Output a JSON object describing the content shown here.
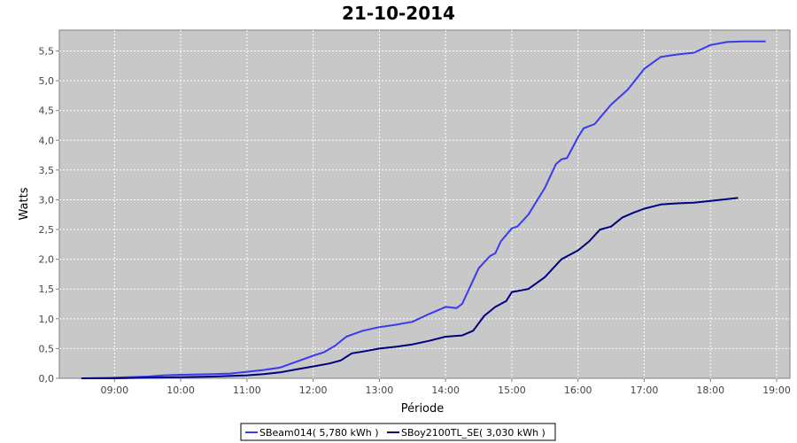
{
  "chart_data": {
    "type": "line",
    "title": "21-10-2014",
    "xlabel": "Période",
    "ylabel": "Watts",
    "x_ticks": [
      "09:00",
      "10:00",
      "11:00",
      "12:00",
      "13:00",
      "14:00",
      "15:00",
      "16:00",
      "17:00",
      "18:00",
      "19:00"
    ],
    "xlim": [
      "08:10",
      "19:12"
    ],
    "y_ticks": [
      "0,0",
      "0,5",
      "1,0",
      "1,5",
      "2,0",
      "2,5",
      "3,0",
      "3,5",
      "4,0",
      "4,5",
      "5,0",
      "5,5"
    ],
    "ylim": [
      0,
      5.85
    ],
    "grid": true,
    "legend_position": "bottom",
    "colors": {
      "plot_background": "#c8c8c8",
      "grid": "#ffffff"
    },
    "series": [
      {
        "name": "SBeam014( 5,780 kWh )",
        "color": "#3a3af0",
        "points": [
          [
            "08:30",
            0.0
          ],
          [
            "09:00",
            0.01
          ],
          [
            "09:30",
            0.03
          ],
          [
            "09:45",
            0.05
          ],
          [
            "10:00",
            0.06
          ],
          [
            "10:30",
            0.07
          ],
          [
            "10:45",
            0.08
          ],
          [
            "11:00",
            0.11
          ],
          [
            "11:15",
            0.14
          ],
          [
            "11:30",
            0.18
          ],
          [
            "11:45",
            0.28
          ],
          [
            "12:00",
            0.38
          ],
          [
            "12:10",
            0.44
          ],
          [
            "12:20",
            0.55
          ],
          [
            "12:30",
            0.7
          ],
          [
            "12:45",
            0.8
          ],
          [
            "13:00",
            0.86
          ],
          [
            "13:15",
            0.9
          ],
          [
            "13:30",
            0.95
          ],
          [
            "13:45",
            1.08
          ],
          [
            "14:00",
            1.2
          ],
          [
            "14:10",
            1.18
          ],
          [
            "14:15",
            1.25
          ],
          [
            "14:20",
            1.45
          ],
          [
            "14:30",
            1.85
          ],
          [
            "14:40",
            2.05
          ],
          [
            "14:45",
            2.1
          ],
          [
            "14:50",
            2.3
          ],
          [
            "15:00",
            2.52
          ],
          [
            "15:05",
            2.55
          ],
          [
            "15:15",
            2.75
          ],
          [
            "15:30",
            3.2
          ],
          [
            "15:40",
            3.6
          ],
          [
            "15:45",
            3.68
          ],
          [
            "15:50",
            3.7
          ],
          [
            "16:00",
            4.05
          ],
          [
            "16:05",
            4.2
          ],
          [
            "16:15",
            4.27
          ],
          [
            "16:30",
            4.6
          ],
          [
            "16:45",
            4.85
          ],
          [
            "17:00",
            5.2
          ],
          [
            "17:15",
            5.4
          ],
          [
            "17:30",
            5.44
          ],
          [
            "17:45",
            5.47
          ],
          [
            "18:00",
            5.6
          ],
          [
            "18:15",
            5.65
          ],
          [
            "18:30",
            5.66
          ],
          [
            "18:50",
            5.66
          ]
        ]
      },
      {
        "name": "SBoy2100TL_SE( 3,030 kWh )",
        "color": "#000080",
        "points": [
          [
            "08:30",
            0.0
          ],
          [
            "09:00",
            0.0
          ],
          [
            "09:30",
            0.01
          ],
          [
            "10:00",
            0.02
          ],
          [
            "10:30",
            0.03
          ],
          [
            "11:00",
            0.05
          ],
          [
            "11:15",
            0.07
          ],
          [
            "11:30",
            0.1
          ],
          [
            "11:45",
            0.15
          ],
          [
            "12:00",
            0.2
          ],
          [
            "12:15",
            0.25
          ],
          [
            "12:25",
            0.3
          ],
          [
            "12:35",
            0.42
          ],
          [
            "12:45",
            0.45
          ],
          [
            "13:00",
            0.5
          ],
          [
            "13:15",
            0.53
          ],
          [
            "13:30",
            0.57
          ],
          [
            "13:45",
            0.63
          ],
          [
            "14:00",
            0.7
          ],
          [
            "14:15",
            0.72
          ],
          [
            "14:25",
            0.8
          ],
          [
            "14:35",
            1.05
          ],
          [
            "14:45",
            1.2
          ],
          [
            "14:55",
            1.3
          ],
          [
            "15:00",
            1.45
          ],
          [
            "15:15",
            1.5
          ],
          [
            "15:30",
            1.7
          ],
          [
            "15:45",
            2.0
          ],
          [
            "16:00",
            2.15
          ],
          [
            "16:10",
            2.3
          ],
          [
            "16:20",
            2.5
          ],
          [
            "16:30",
            2.55
          ],
          [
            "16:40",
            2.7
          ],
          [
            "16:50",
            2.78
          ],
          [
            "17:00",
            2.85
          ],
          [
            "17:15",
            2.92
          ],
          [
            "17:30",
            2.94
          ],
          [
            "17:45",
            2.95
          ],
          [
            "18:00",
            2.98
          ],
          [
            "18:15",
            3.01
          ],
          [
            "18:25",
            3.03
          ]
        ]
      }
    ]
  }
}
